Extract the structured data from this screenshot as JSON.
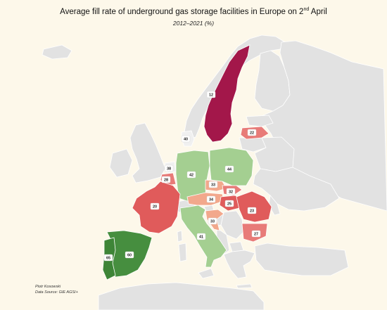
{
  "title_main": "Average fill rate of underground gas storage facilities in Europe on 2",
  "title_sup": "nd",
  "title_end": " April",
  "subtitle": "2012–2021 (%)",
  "author": "Piotr Kosowski",
  "source": "Data Source: GIE AGSI+",
  "color_scale": {
    "low": "#a3174a",
    "mid": "#f2a88c",
    "high": "#468e3f",
    "no_data": "#e2e2e2"
  },
  "countries": [
    {
      "name": "Sweden",
      "value": 12
    },
    {
      "name": "Latvia",
      "value": 22
    },
    {
      "name": "Denmark",
      "value": 40
    },
    {
      "name": "Netherlands",
      "value": 38
    },
    {
      "name": "Belgium",
      "value": 28
    },
    {
      "name": "Germany",
      "value": 42
    },
    {
      "name": "Poland",
      "value": 44
    },
    {
      "name": "Czechia",
      "value": 33
    },
    {
      "name": "Slovakia",
      "value": 32
    },
    {
      "name": "Austria",
      "value": 34
    },
    {
      "name": "Hungary",
      "value": 25
    },
    {
      "name": "Romania",
      "value": 23
    },
    {
      "name": "Bulgaria",
      "value": 27
    },
    {
      "name": "Croatia",
      "value": 33
    },
    {
      "name": "Italy",
      "value": 41
    },
    {
      "name": "France",
      "value": 20
    },
    {
      "name": "Spain",
      "value": 60
    },
    {
      "name": "Portugal",
      "value": 65
    }
  ]
}
